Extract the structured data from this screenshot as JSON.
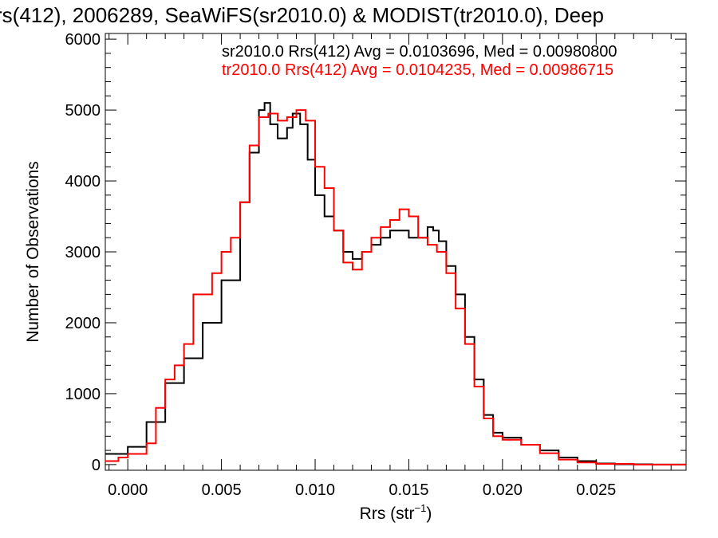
{
  "chart_data": {
    "type": "line",
    "title": "rs(412), 2006289, SeaWiFS(sr2010.0) & MODIST(tr2010.0), Deep",
    "xlabel": "Rrs (str",
    "xlabel_sup": "−1",
    "xlabel_close": ")",
    "ylabel": "Number of Observations",
    "xlim": [
      -0.0012,
      0.0298
    ],
    "ylim": [
      -80,
      6080
    ],
    "x_ticks": [
      0.0,
      0.005,
      0.01,
      0.015,
      0.02,
      0.025
    ],
    "x_tick_labels": [
      "0.000",
      "0.005",
      "0.010",
      "0.015",
      "0.020",
      "0.025"
    ],
    "y_ticks": [
      0,
      1000,
      2000,
      3000,
      4000,
      5000,
      6000
    ],
    "y_tick_labels": [
      "0",
      "1000",
      "2000",
      "3000",
      "4000",
      "5000",
      "6000"
    ],
    "grid": false,
    "legend_position": "top-right",
    "series": [
      {
        "name": "sr2010.0 Rrs(412) Avg = 0.0103696, Med = 0.00980800",
        "color": "#000000",
        "points": [
          [
            -0.0012,
            150
          ],
          [
            0.0,
            250
          ],
          [
            0.001,
            600
          ],
          [
            0.002,
            1150
          ],
          [
            0.003,
            1500
          ],
          [
            0.004,
            2000
          ],
          [
            0.005,
            2600
          ],
          [
            0.006,
            3700
          ],
          [
            0.0065,
            4400
          ],
          [
            0.007,
            5000
          ],
          [
            0.0073,
            5100
          ],
          [
            0.0076,
            4800
          ],
          [
            0.008,
            4600
          ],
          [
            0.0085,
            4750
          ],
          [
            0.0088,
            4950
          ],
          [
            0.0092,
            4800
          ],
          [
            0.0096,
            4300
          ],
          [
            0.01,
            3800
          ],
          [
            0.0105,
            3500
          ],
          [
            0.011,
            3300
          ],
          [
            0.0115,
            3000
          ],
          [
            0.012,
            2900
          ],
          [
            0.0125,
            3000
          ],
          [
            0.013,
            3100
          ],
          [
            0.0135,
            3200
          ],
          [
            0.014,
            3300
          ],
          [
            0.0145,
            3300
          ],
          [
            0.015,
            3200
          ],
          [
            0.0155,
            3200
          ],
          [
            0.016,
            3350
          ],
          [
            0.0163,
            3300
          ],
          [
            0.0166,
            3150
          ],
          [
            0.017,
            2800
          ],
          [
            0.0175,
            2400
          ],
          [
            0.018,
            1800
          ],
          [
            0.0185,
            1200
          ],
          [
            0.019,
            700
          ],
          [
            0.0195,
            450
          ],
          [
            0.02,
            380
          ],
          [
            0.021,
            280
          ],
          [
            0.022,
            200
          ],
          [
            0.023,
            100
          ],
          [
            0.024,
            50
          ],
          [
            0.025,
            15
          ],
          [
            0.026,
            5
          ],
          [
            0.028,
            0
          ],
          [
            0.0298,
            0
          ]
        ]
      },
      {
        "name": "tr2010.0 Rrs(412) Avg = 0.0104235, Med = 0.00986715",
        "color": "#ff0000",
        "points": [
          [
            -0.0012,
            50
          ],
          [
            -0.0005,
            100
          ],
          [
            0.0,
            150
          ],
          [
            0.001,
            300
          ],
          [
            0.0015,
            800
          ],
          [
            0.002,
            1200
          ],
          [
            0.0025,
            1400
          ],
          [
            0.003,
            1700
          ],
          [
            0.0035,
            2400
          ],
          [
            0.004,
            2400
          ],
          [
            0.0045,
            2700
          ],
          [
            0.005,
            3000
          ],
          [
            0.0055,
            3200
          ],
          [
            0.006,
            3700
          ],
          [
            0.0065,
            4500
          ],
          [
            0.007,
            4900
          ],
          [
            0.0075,
            4950
          ],
          [
            0.008,
            4850
          ],
          [
            0.0085,
            4900
          ],
          [
            0.009,
            5000
          ],
          [
            0.0095,
            4850
          ],
          [
            0.01,
            4200
          ],
          [
            0.0105,
            3900
          ],
          [
            0.011,
            3300
          ],
          [
            0.0115,
            2850
          ],
          [
            0.012,
            2750
          ],
          [
            0.0125,
            3000
          ],
          [
            0.013,
            3200
          ],
          [
            0.0135,
            3350
          ],
          [
            0.014,
            3450
          ],
          [
            0.0145,
            3600
          ],
          [
            0.015,
            3500
          ],
          [
            0.0155,
            3200
          ],
          [
            0.016,
            3100
          ],
          [
            0.0165,
            3000
          ],
          [
            0.017,
            2700
          ],
          [
            0.0175,
            2200
          ],
          [
            0.018,
            1700
          ],
          [
            0.0185,
            1100
          ],
          [
            0.019,
            650
          ],
          [
            0.0195,
            400
          ],
          [
            0.02,
            350
          ],
          [
            0.021,
            280
          ],
          [
            0.022,
            160
          ],
          [
            0.023,
            70
          ],
          [
            0.024,
            30
          ],
          [
            0.025,
            10
          ],
          [
            0.027,
            0
          ],
          [
            0.0298,
            0
          ]
        ]
      }
    ]
  }
}
